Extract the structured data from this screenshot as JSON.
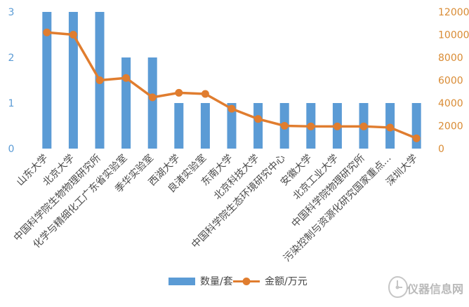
{
  "chart_data": {
    "type": "bar",
    "categories": [
      "山东大学",
      "北京大学",
      "中国科学院生物物理研究所",
      "化学与精细化工广东省实验室",
      "季华实验室",
      "西湖大学",
      "良渚实验室",
      "东南大学",
      "北京科技大学",
      "中国科学院生态环境研究中心",
      "安徽大学",
      "北京工业大学",
      "中国科学院物理研究所",
      "污染控制与资源化研究国家重点...",
      "深圳大学"
    ],
    "series": [
      {
        "name": "数量/套",
        "type": "bar",
        "axis": "left",
        "color": "#5b9bd5",
        "values": [
          3,
          3,
          3,
          2,
          2,
          1,
          1,
          1,
          1,
          1,
          1,
          1,
          1,
          1,
          1
        ]
      },
      {
        "name": "金额/万元",
        "type": "line",
        "axis": "right",
        "color": "#e07d2f",
        "values": [
          10200,
          10000,
          6000,
          6200,
          4500,
          4900,
          4800,
          3500,
          2600,
          2000,
          1950,
          1950,
          1950,
          1850,
          900
        ]
      }
    ],
    "y_left": {
      "min": 0,
      "max": 3,
      "ticks": [
        0,
        1,
        2,
        3
      ]
    },
    "y_right": {
      "min": 0,
      "max": 12000,
      "ticks": [
        0,
        2000,
        4000,
        6000,
        8000,
        10000,
        12000
      ]
    },
    "legend": {
      "placement": "bottom",
      "items": [
        {
          "label": "数量/套",
          "color": "#5b9bd5",
          "kind": "bar"
        },
        {
          "label": "金额/万元",
          "color": "#e07d2f",
          "kind": "line"
        }
      ]
    },
    "grid": false
  },
  "watermark": {
    "text": "仪器信息网",
    "icon": "logo-icon"
  }
}
